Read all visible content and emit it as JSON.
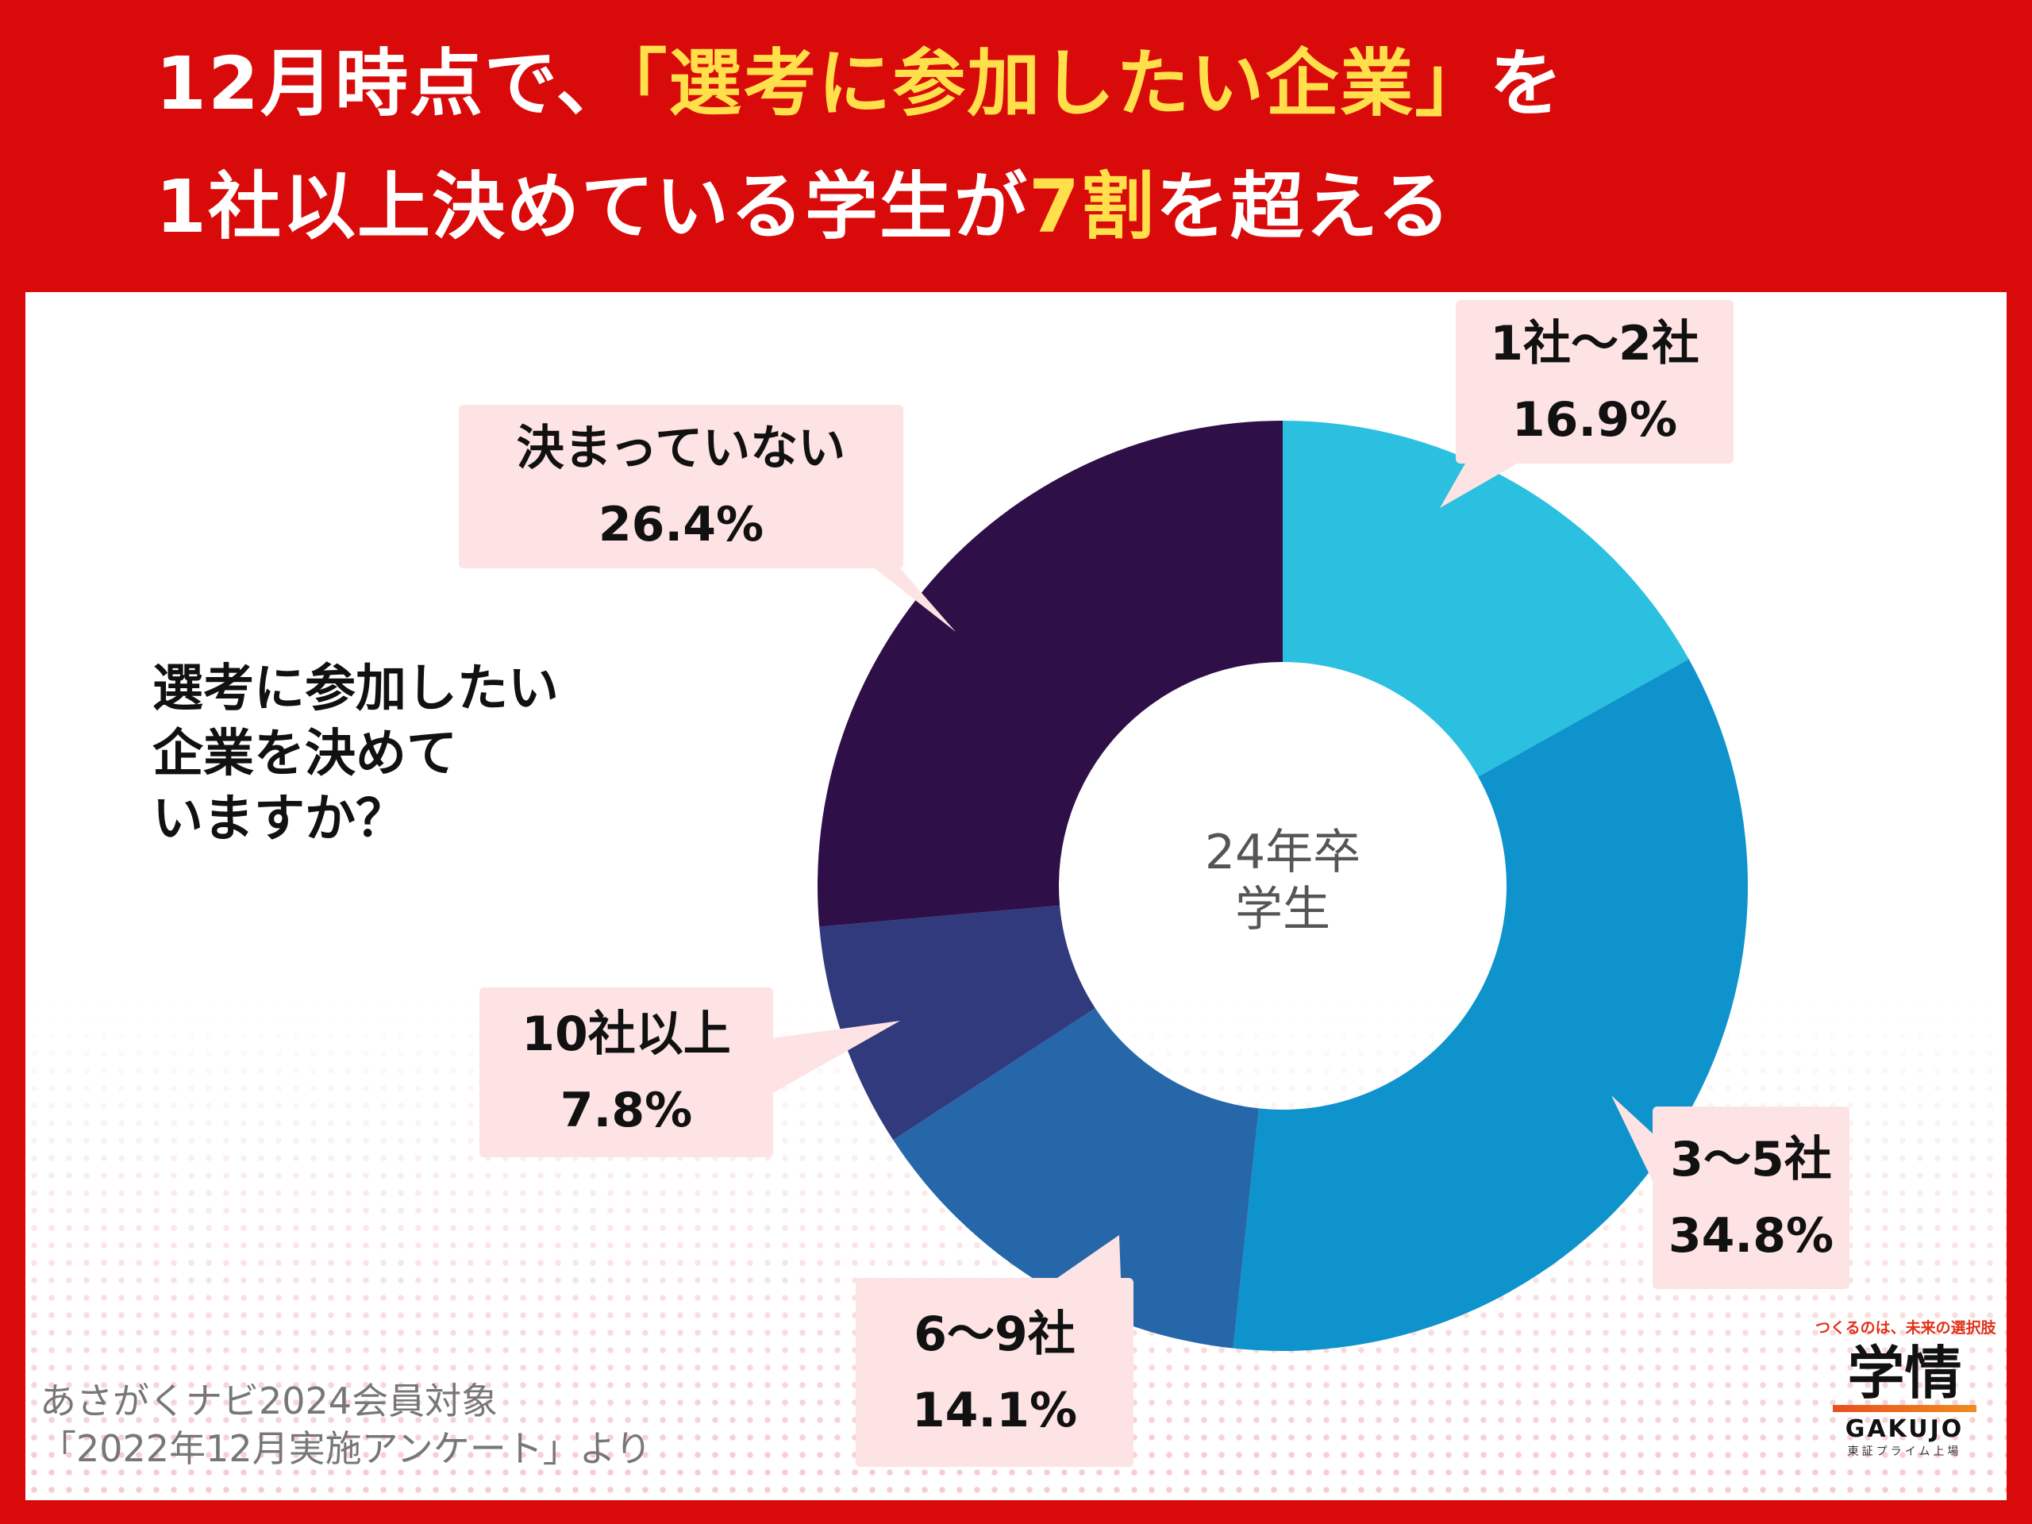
{
  "title": {
    "line1_pre": "12月時点で、",
    "line1_hl": "「選考に参加したい企業」",
    "line1_post": "を",
    "line2_pre": "1社以上決めている学生が",
    "line2_hl": "7割",
    "line2_post": "を超える"
  },
  "question": {
    "line1": "選考に参加したい",
    "line2": "企業を決めて",
    "line3": "いますか？"
  },
  "chart_data": {
    "type": "pie",
    "center_label": [
      "24年卒",
      "学生"
    ],
    "slices": [
      {
        "label": "1社〜2社",
        "value": 16.9,
        "display": "16.9%",
        "color": "#2bbfe0"
      },
      {
        "label": "3〜5社",
        "value": 34.8,
        "display": "34.8%",
        "color": "#0e93cc"
      },
      {
        "label": "6〜9社",
        "value": 14.1,
        "display": "14.1%",
        "color": "#2667aa"
      },
      {
        "label": "10社以上",
        "value": 7.8,
        "display": "7.8%",
        "color": "#303a7c"
      },
      {
        "label": "決まっていない",
        "value": 26.4,
        "display": "26.4%",
        "color": "#2e0f48"
      }
    ]
  },
  "source": {
    "line1": "あさがくナビ2024会員対象",
    "line2": "「2022年12月実施アンケート」より"
  },
  "logo": {
    "tagline": "つくるのは、未来の選択肢",
    "mark": "学情",
    "english": "GAKUJO",
    "sub": "東証プライム上場"
  },
  "colors": {
    "background": "#d90a0a",
    "highlight": "#ffe04a",
    "callout": "#fde3e3"
  }
}
